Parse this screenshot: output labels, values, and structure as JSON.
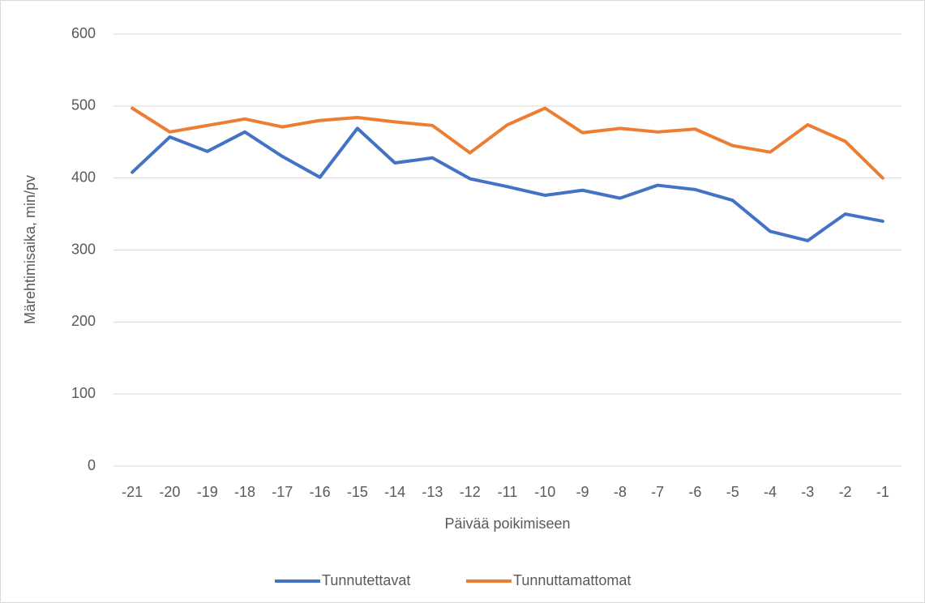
{
  "chart_data": {
    "type": "line",
    "x_label": "Päivää poikimiseen",
    "y_label": "Märehtimisaika, min/pv",
    "categories": [
      "-21",
      "-20",
      "-19",
      "-18",
      "-17",
      "-16",
      "-15",
      "-14",
      "-13",
      "-12",
      "-11",
      "-10",
      "-9",
      "-8",
      "-7",
      "-6",
      "-5",
      "-4",
      "-3",
      "-2",
      "-1"
    ],
    "series": [
      {
        "name": "Tunnutettavat",
        "color": "#4472c4",
        "values": [
          408,
          457,
          437,
          464,
          430,
          401,
          469,
          421,
          428,
          399,
          388,
          376,
          383,
          372,
          390,
          384,
          369,
          326,
          313,
          350,
          340
        ]
      },
      {
        "name": "Tunnuttamattomat",
        "color": "#ed7d31",
        "values": [
          497,
          464,
          473,
          482,
          471,
          480,
          484,
          478,
          473,
          435,
          474,
          497,
          463,
          469,
          464,
          468,
          445,
          436,
          474,
          451,
          400
        ]
      }
    ],
    "ylim": [
      0,
      600
    ],
    "yticks": [
      0,
      100,
      200,
      300,
      400,
      500,
      600
    ],
    "grid": true,
    "legend": "bottom"
  }
}
